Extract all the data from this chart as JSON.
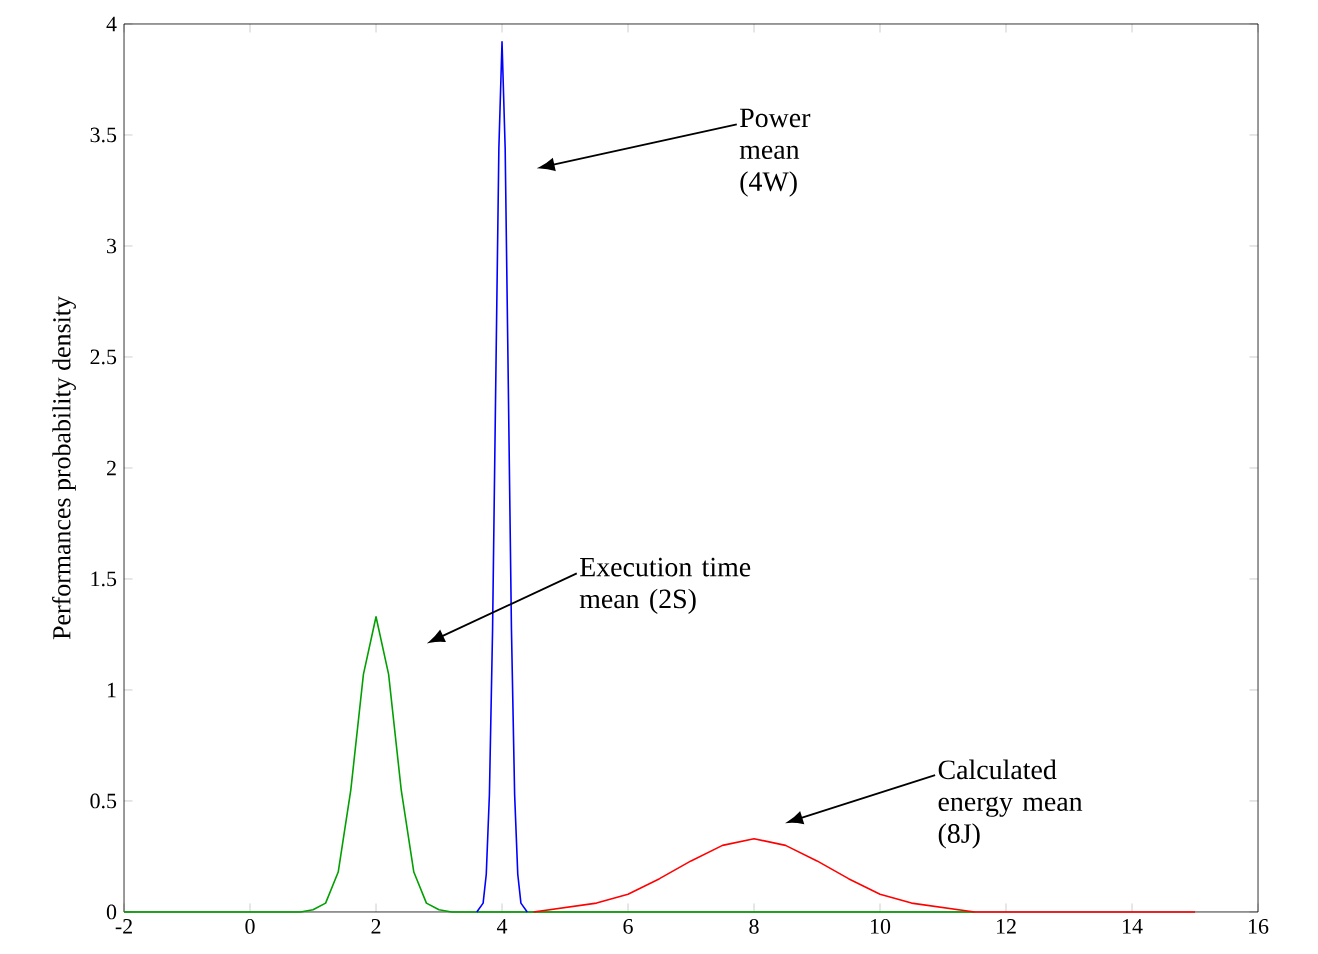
{
  "chart_data": {
    "type": "line",
    "ylabel": "Performances probability density",
    "xlim": [
      -2,
      16
    ],
    "ylim": [
      0,
      4
    ],
    "xticks": [
      -2,
      0,
      2,
      4,
      6,
      8,
      10,
      12,
      14,
      16
    ],
    "yticks": [
      0,
      0.5,
      1,
      1.5,
      2,
      2.5,
      3,
      3.5,
      4
    ],
    "grid": false,
    "marker": "none",
    "line_style": "solid",
    "series": [
      {
        "color": "#00a000",
        "x": [
          -2,
          0.8,
          1.0,
          1.2,
          1.4,
          1.6,
          1.8,
          2.0,
          2.2,
          2.4,
          2.6,
          2.8,
          3.0,
          3.2,
          11.5
        ],
        "values": [
          0,
          0,
          0.01,
          0.04,
          0.18,
          0.55,
          1.07,
          1.33,
          1.07,
          0.55,
          0.18,
          0.04,
          0.01,
          0,
          0
        ]
      },
      {
        "color": "#0000ff",
        "x": [
          3.6,
          3.7,
          3.75,
          3.8,
          3.85,
          3.9,
          3.95,
          4.0,
          4.05,
          4.1,
          4.15,
          4.2,
          4.25,
          4.3,
          4.4
        ],
        "values": [
          0,
          0.04,
          0.17,
          0.53,
          1.27,
          2.37,
          3.44,
          3.92,
          3.44,
          2.37,
          1.27,
          0.53,
          0.17,
          0.04,
          0
        ]
      },
      {
        "color": "#ff0000",
        "x": [
          4.5,
          5.0,
          5.5,
          6.0,
          6.5,
          7.0,
          7.5,
          8.0,
          8.5,
          9.0,
          9.5,
          10.0,
          10.5,
          11.0,
          11.5,
          15.0
        ],
        "values": [
          0,
          0.02,
          0.04,
          0.08,
          0.15,
          0.23,
          0.3,
          0.33,
          0.3,
          0.23,
          0.15,
          0.08,
          0.04,
          0.02,
          0,
          0
        ]
      }
    ],
    "annotations": [
      "Power mean (4W)",
      "Execution time mean (2S)",
      "Calculated energy mean (8J)"
    ]
  }
}
